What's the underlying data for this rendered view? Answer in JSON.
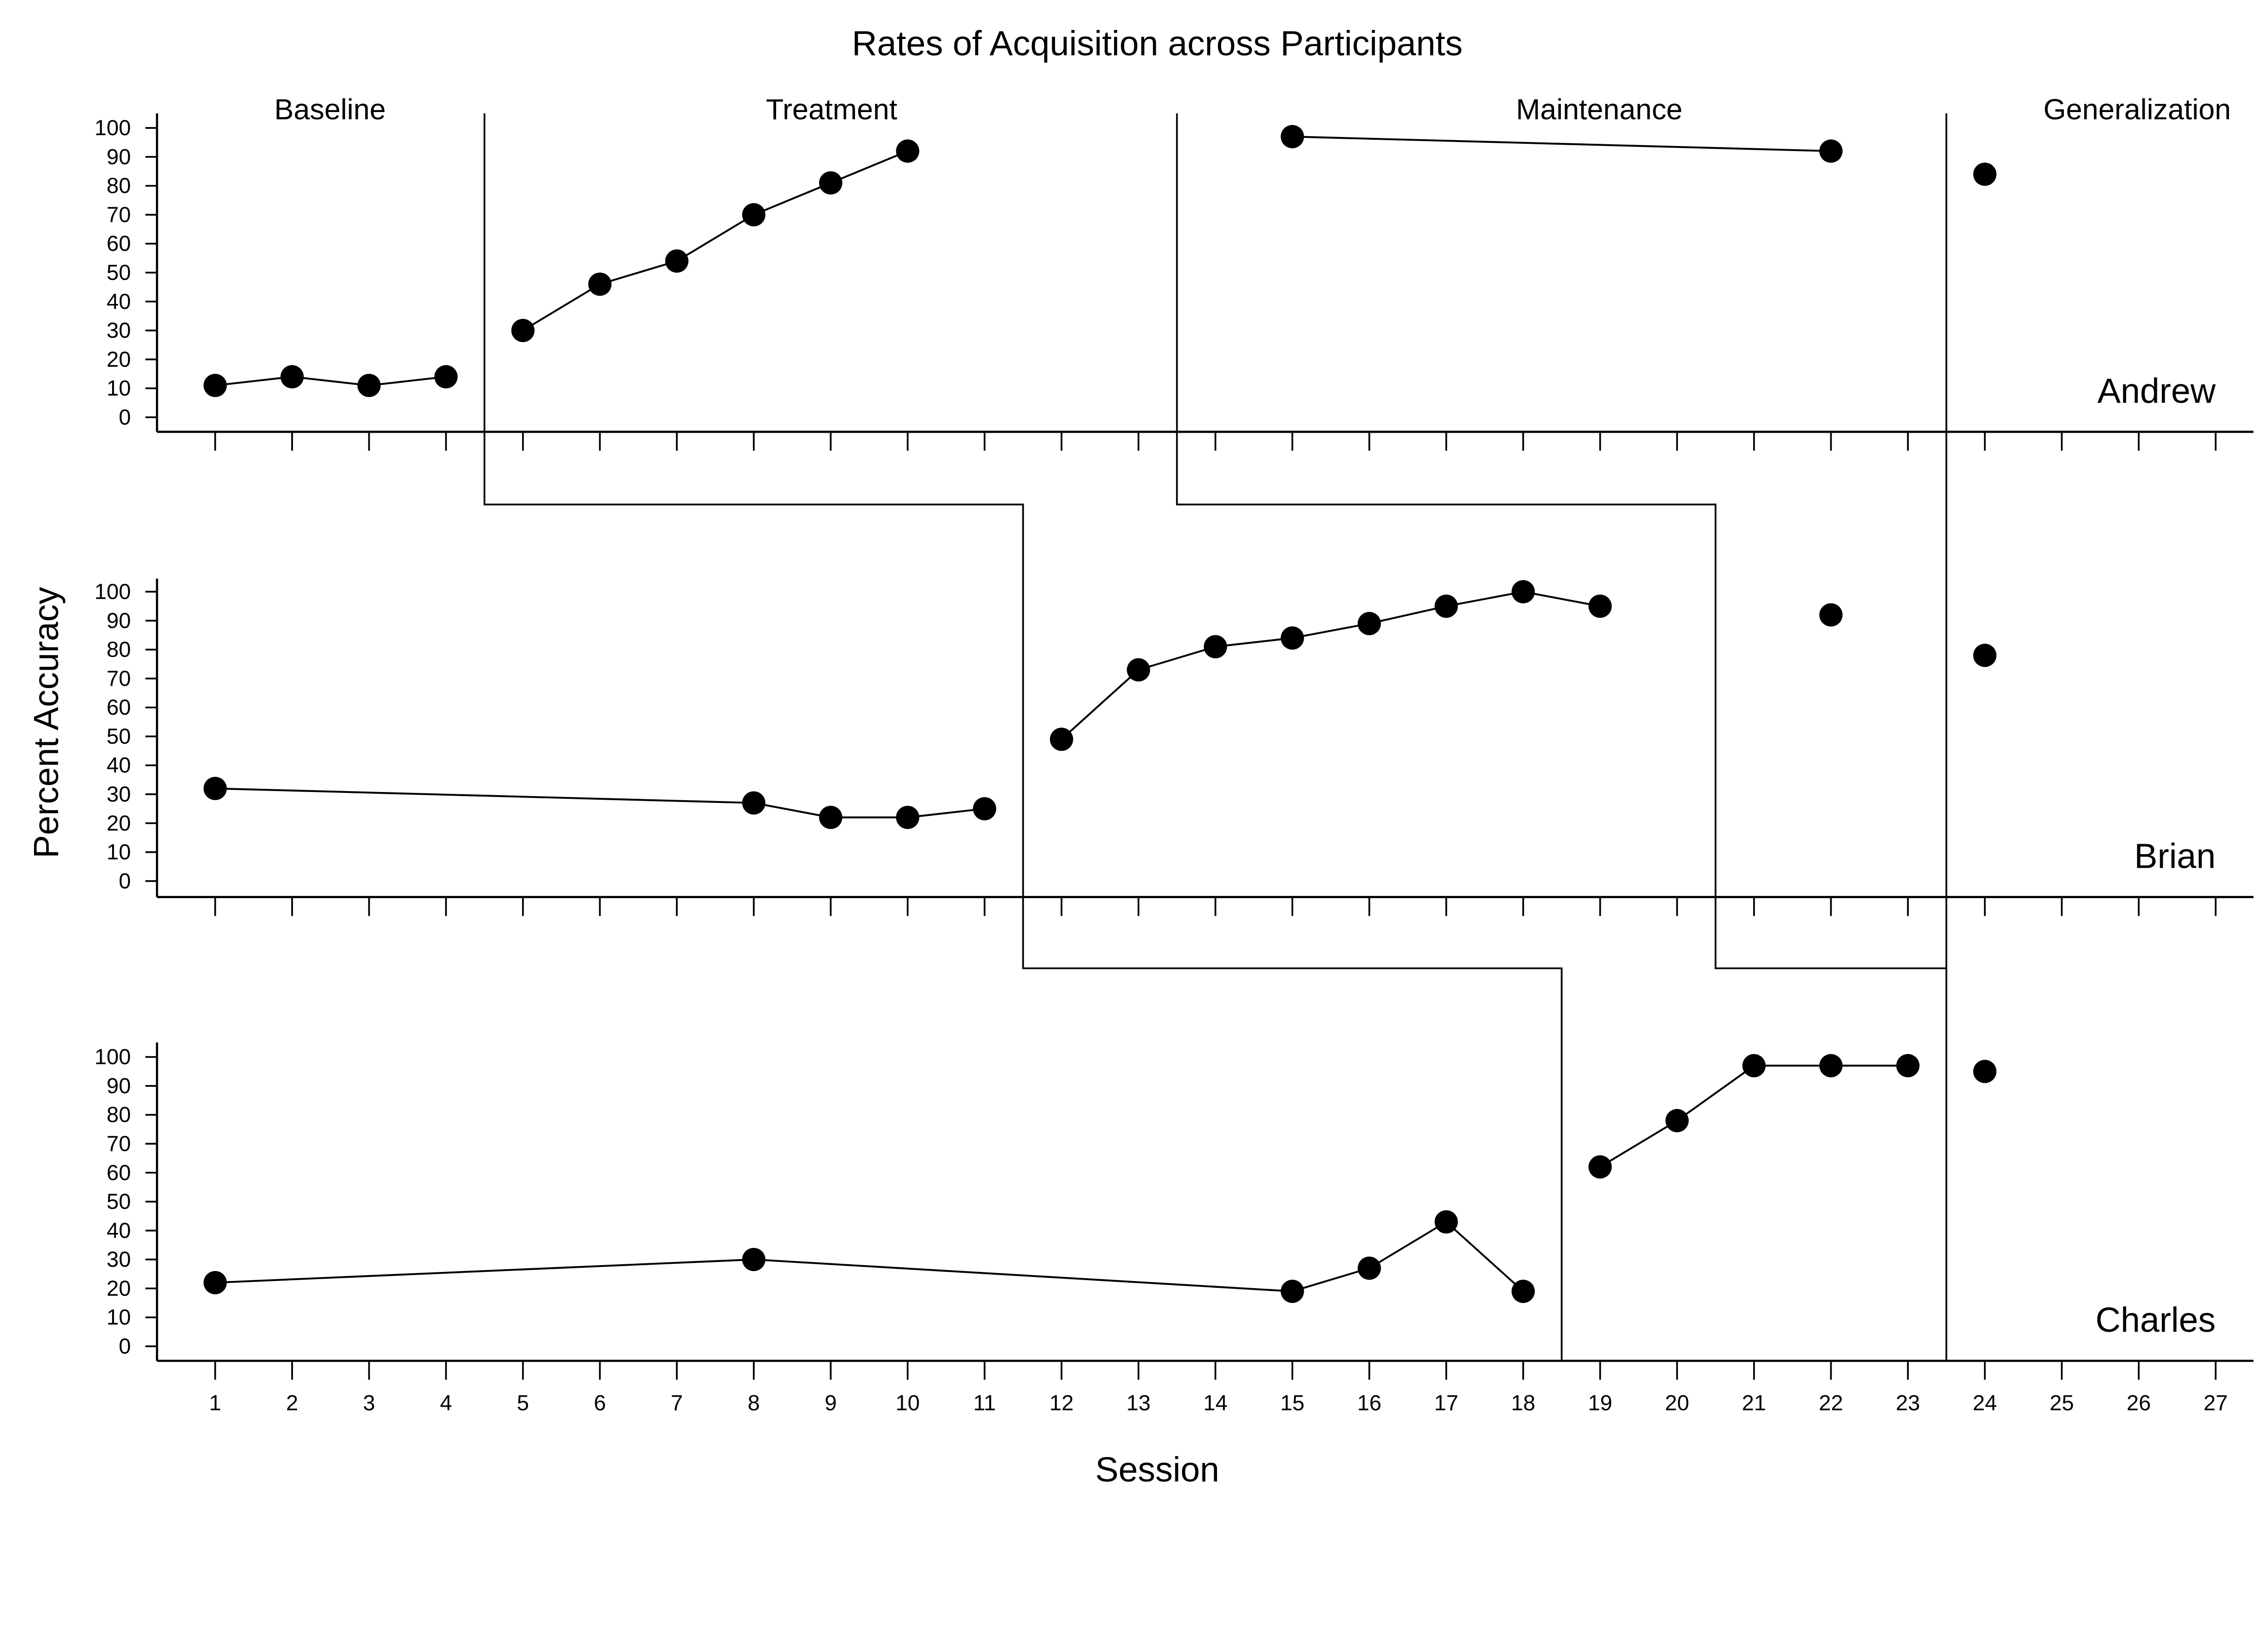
{
  "chart_data": {
    "type": "line",
    "title": "Rates of Acquisition across Participants",
    "xlabel": "Session",
    "ylabel": "Percent Accuracy",
    "xlim": [
      1,
      27
    ],
    "ylim": [
      0,
      100
    ],
    "x_ticks": [
      1,
      2,
      3,
      4,
      5,
      6,
      7,
      8,
      9,
      10,
      11,
      12,
      13,
      14,
      15,
      16,
      17,
      18,
      19,
      20,
      21,
      22,
      23,
      24,
      25,
      26,
      27
    ],
    "y_ticks": [
      0,
      10,
      20,
      30,
      40,
      50,
      60,
      70,
      80,
      90,
      100
    ],
    "grid": false,
    "phase_labels": [
      "Baseline",
      "Treatment",
      "Maintenance",
      "Generalization"
    ],
    "phase_changes": [
      {
        "participant": "Andrew",
        "sessions": [
          4.5,
          13.5,
          23.5
        ]
      },
      {
        "participant": "Brian",
        "sessions": [
          11.5,
          20.5,
          23.5
        ]
      },
      {
        "participant": "Charles",
        "sessions": [
          18.5,
          23.5,
          23.5
        ]
      }
    ],
    "panels": [
      {
        "name": "Andrew",
        "phases": [
          {
            "x": [
              1,
              2,
              3,
              4
            ],
            "y": [
              11,
              14,
              11,
              14
            ]
          },
          {
            "x": [
              5,
              6,
              7,
              8,
              9,
              10
            ],
            "y": [
              30,
              46,
              54,
              70,
              81,
              92
            ]
          },
          {
            "x": [
              15,
              22
            ],
            "y": [
              97,
              92
            ]
          },
          {
            "x": [
              24
            ],
            "y": [
              84
            ]
          }
        ]
      },
      {
        "name": "Brian",
        "phases": [
          {
            "x": [
              1,
              8,
              9,
              10,
              11
            ],
            "y": [
              32,
              27,
              22,
              22,
              25
            ]
          },
          {
            "x": [
              12,
              13,
              14,
              15,
              16,
              17,
              18,
              19
            ],
            "y": [
              49,
              73,
              81,
              84,
              89,
              95,
              100,
              95
            ]
          },
          {
            "x": [
              22
            ],
            "y": [
              92
            ]
          },
          {
            "x": [
              24
            ],
            "y": [
              78
            ]
          }
        ]
      },
      {
        "name": "Charles",
        "phases": [
          {
            "x": [
              1,
              8,
              15,
              16,
              17,
              18
            ],
            "y": [
              22,
              30,
              19,
              27,
              43,
              19
            ]
          },
          {
            "x": [
              19,
              20,
              21,
              22,
              23
            ],
            "y": [
              62,
              78,
              97,
              97,
              97
            ]
          },
          {
            "x": [
              24
            ],
            "y": [
              95
            ]
          }
        ]
      }
    ]
  }
}
